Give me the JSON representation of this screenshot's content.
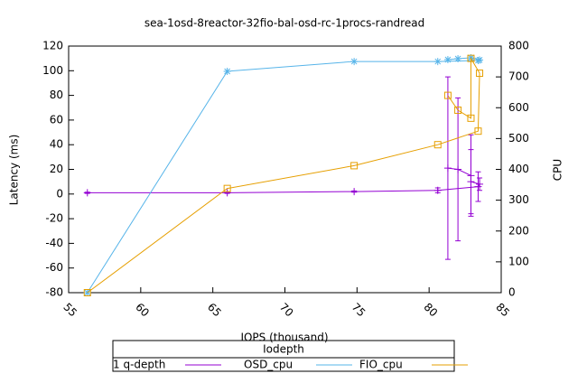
{
  "chart_data": {
    "type": "line",
    "title": "sea-1osd-8reactor-32fio-bal-osd-rc-1procs-randread",
    "x_label": "IOPS (thousand)",
    "y_label": "Latency (ms)",
    "y2_label": "CPU",
    "legend_title": "Iodepth",
    "legend": "bottom",
    "x": [
      56.3,
      66.0,
      74.8,
      80.6,
      83.4,
      83.5,
      82.9,
      82.9,
      82.0,
      81.3
    ],
    "series": [
      {
        "name": "1 q-depth",
        "color": "#9400d3",
        "marker": "plus",
        "values": [
          1,
          1,
          2,
          3,
          6,
          8,
          10,
          15,
          20,
          21
        ],
        "errors": [
          0.5,
          0.5,
          0.5,
          2,
          12,
          5,
          26,
          33,
          58,
          74
        ]
      },
      {
        "name": "OSD_cpu",
        "color": "#56b4e9",
        "marker": "star",
        "axis": "y2",
        "values": [
          0,
          718,
          750,
          750,
          753,
          755,
          762,
          762,
          759,
          756
        ]
      },
      {
        "name": "FIO_cpu",
        "color": "#e69f00",
        "marker": "square",
        "axis": "y2",
        "values": [
          0,
          338,
          412,
          480,
          524,
          712,
          760,
          566,
          592,
          640
        ]
      }
    ],
    "xlim": [
      55,
      85
    ],
    "xticks": [
      55,
      60,
      65,
      70,
      75,
      80,
      85
    ],
    "ylim": [
      -80,
      120
    ],
    "yticks": [
      -80,
      -60,
      -40,
      -20,
      0,
      20,
      40,
      60,
      80,
      100,
      120
    ],
    "y2lim": [
      0,
      800
    ],
    "y2ticks": [
      0,
      100,
      200,
      300,
      400,
      500,
      600,
      700,
      800
    ]
  }
}
